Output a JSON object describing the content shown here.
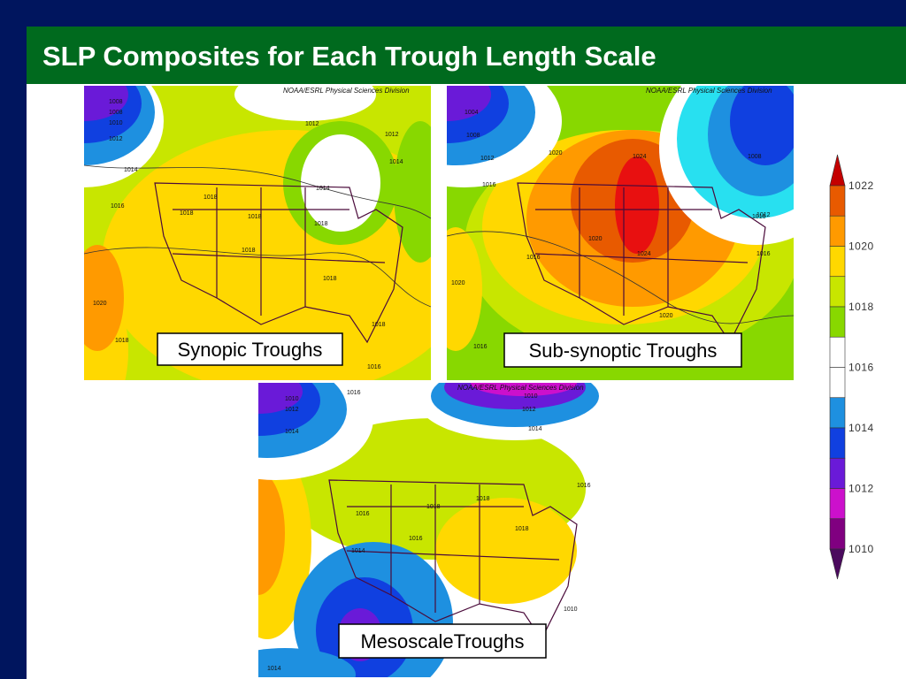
{
  "header": {
    "title": "SLP Composites for Each Trough Length Scale"
  },
  "maps": [
    {
      "label": "Synopic Troughs",
      "credit": "NOAA/ESRL Physical Sciences Division",
      "contours": [
        1008,
        1008,
        1010,
        1012,
        1014,
        1016,
        1018,
        1018,
        1018,
        1018,
        1012,
        1012,
        1014,
        1014,
        1020,
        1018,
        1018,
        1018,
        1016,
        1018
      ]
    },
    {
      "label": "Sub-synoptic Troughs",
      "credit": "NOAA/ESRL Physical Sciences Division",
      "contours": [
        1004,
        1008,
        1012,
        1016,
        1020,
        1024,
        1020,
        1024,
        1016,
        1020,
        1016,
        1016,
        1012,
        1008,
        1020,
        1016
      ]
    },
    {
      "label": "MesoscaleTroughs",
      "credit": "NOAA/ESRL Physical Sciences Division",
      "contours": [
        1010,
        1012,
        1014,
        1016,
        1010,
        1012,
        1014,
        1016,
        1018,
        1018,
        1016,
        1018,
        1014,
        1016,
        1010,
        1014
      ]
    }
  ],
  "colorbar": {
    "labels": [
      1022,
      1020,
      1018,
      1016,
      1014,
      1012,
      1010
    ]
  }
}
